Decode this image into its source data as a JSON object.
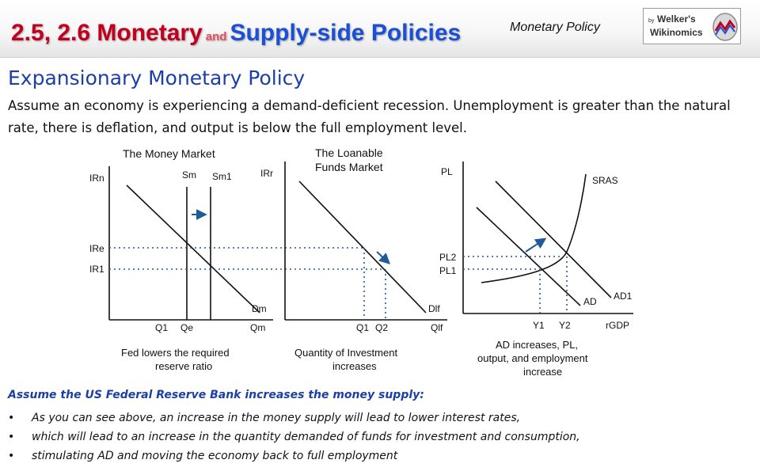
{
  "header": {
    "title_part1": "2.5, 2.6 Monetary",
    "title_part2": "and",
    "title_part3": "Supply-side Policies",
    "section": "Monetary Policy",
    "logo_by": "by",
    "logo_line1": "Welker's",
    "logo_line2": "Wikinomics"
  },
  "heading": "Expansionary Monetary Policy",
  "intro": "Assume an economy is experiencing a demand-deficient recession. Unemployment is greater than the natural rate, there is deflation, and output is below the full employment level.",
  "money_market": {
    "title": "The Money Market",
    "y_axis": "IRn",
    "supply_labels": [
      "Sm",
      "Sm1"
    ],
    "y_ticks": [
      "IRe",
      "IR1"
    ],
    "x_ticks": [
      "Q1",
      "Qe",
      "Qm"
    ],
    "demand_label": "Dm",
    "caption_line1": "Fed lowers the required",
    "caption_line2": "reserve ratio"
  },
  "loanable_funds": {
    "title_line1": "The Loanable",
    "title_line2": "Funds Market",
    "y_axis": "IRr",
    "x_ticks": [
      "Q1",
      "Q2"
    ],
    "x_axis": "Qlf",
    "demand_label": "Dlf",
    "caption_line1": "Quantity of Investment",
    "caption_line2": "increases"
  },
  "ad_as": {
    "y_axis": "PL",
    "y_ticks": [
      "PL2",
      "PL1"
    ],
    "x_ticks": [
      "Y1",
      "Y2"
    ],
    "x_axis": "rGDP",
    "curves": [
      "SRAS",
      "AD",
      "AD1"
    ],
    "caption_line1": "AD increases, PL,",
    "caption_line2": "output, and employment",
    "caption_line3": "increase"
  },
  "lead": "Assume the US Federal Reserve Bank increases the money supply:",
  "bullets": [
    "As you can see above, an increase in the money supply will lead to lower interest rates,",
    "which will lead to an increase in the quantity demanded of funds for investment and consumption,",
    "stimulating AD and moving the economy back to full employment"
  ],
  "colors": {
    "title_red": "#c0001e",
    "title_blue": "#1a4fd6",
    "heading_blue": "#1a3faa",
    "arrow_blue": "#1f5a99"
  }
}
